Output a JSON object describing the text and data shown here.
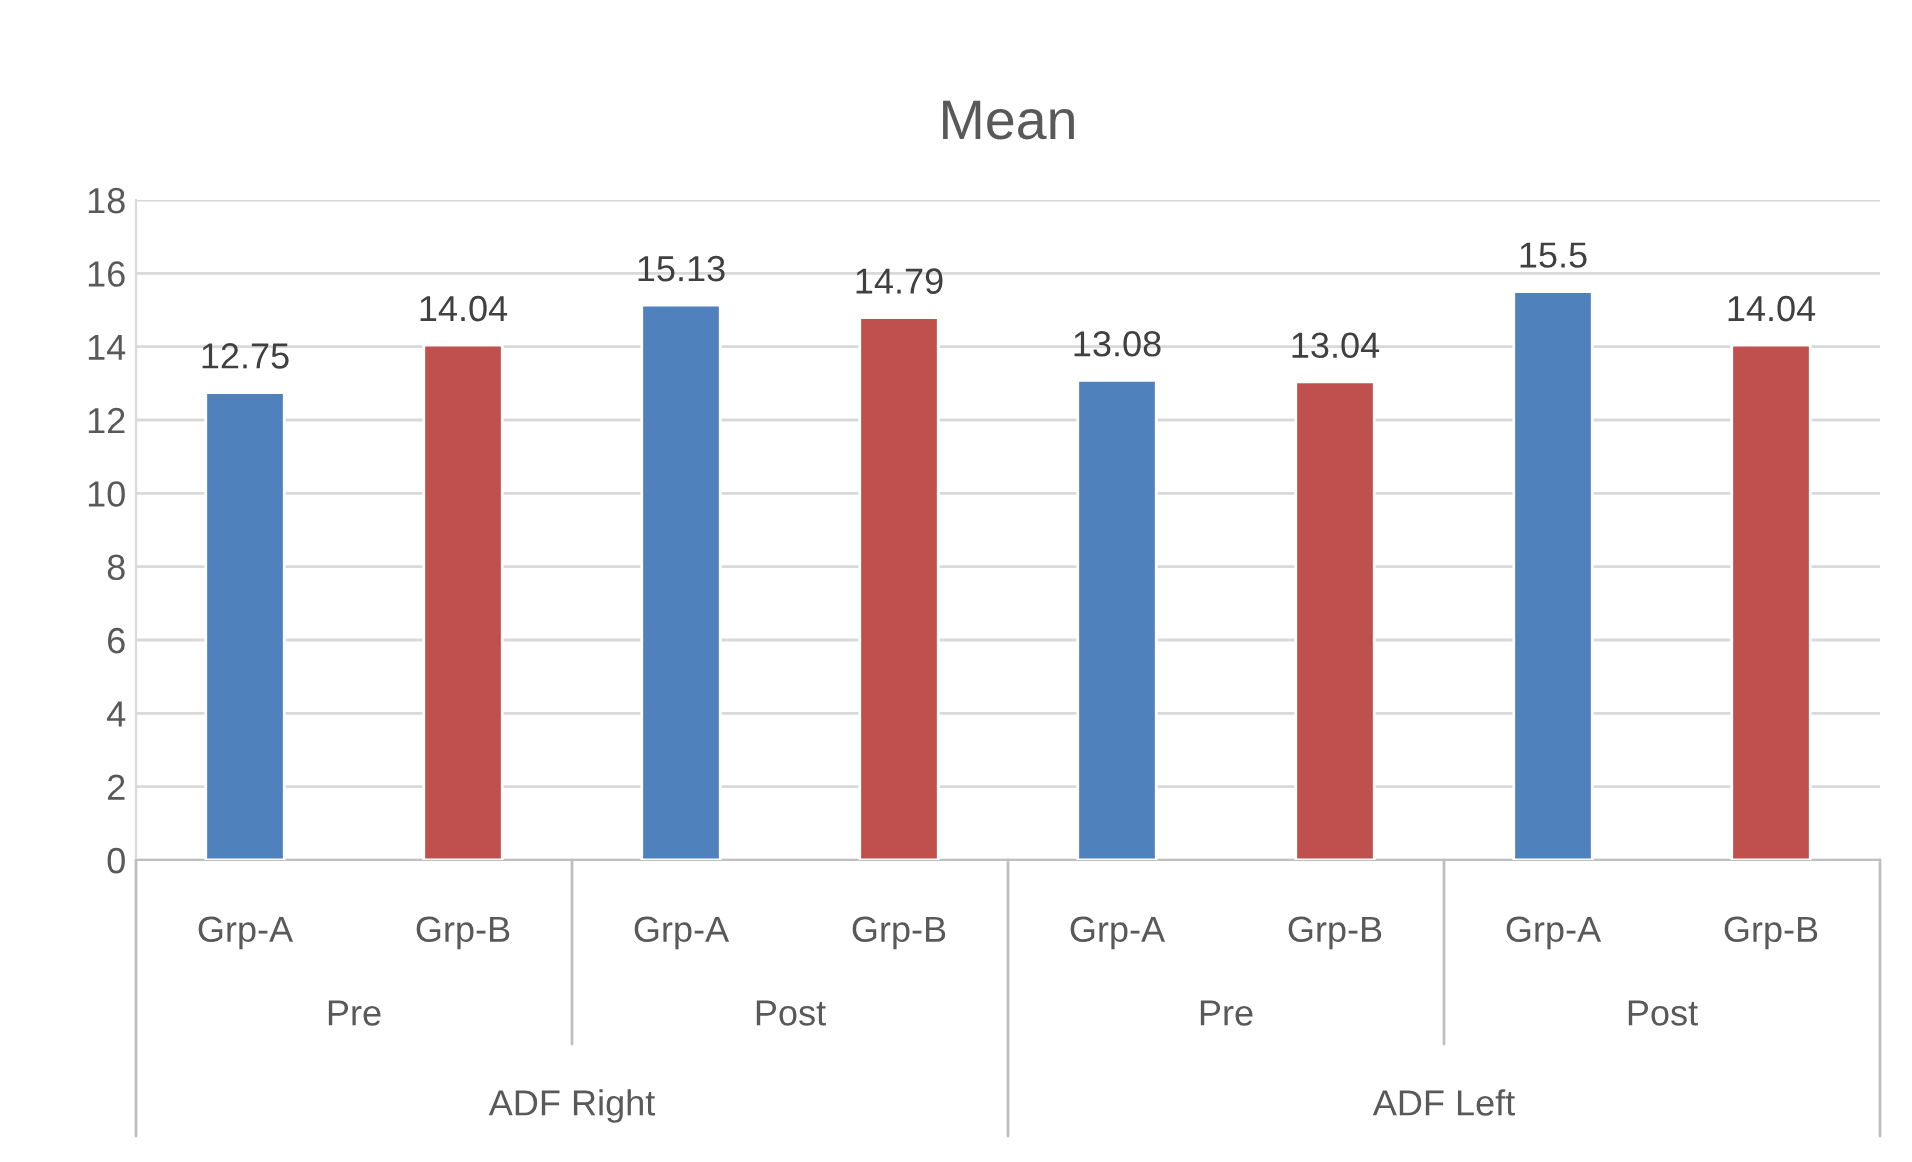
{
  "chart_data": {
    "type": "bar",
    "title": "Mean",
    "categories": [
      "Grp-A",
      "Grp-B",
      "Grp-A",
      "Grp-B",
      "Grp-A",
      "Grp-B",
      "Grp-A",
      "Grp-B"
    ],
    "values": [
      12.75,
      14.04,
      15.13,
      14.79,
      13.08,
      13.04,
      15.5,
      14.04
    ],
    "colors": [
      "#4f81bd",
      "#c0504d",
      "#4f81bd",
      "#c0504d",
      "#4f81bd",
      "#c0504d",
      "#4f81bd",
      "#c0504d"
    ],
    "annotations": [
      "Pre",
      "Post",
      "Pre",
      "Post",
      "ADF Right",
      "ADF Left"
    ],
    "ylim": [
      0,
      18
    ],
    "yticks": [
      0,
      2,
      4,
      6,
      8,
      10,
      12,
      14,
      16,
      18
    ],
    "data_labels": true,
    "grid": "y",
    "legend": false
  }
}
